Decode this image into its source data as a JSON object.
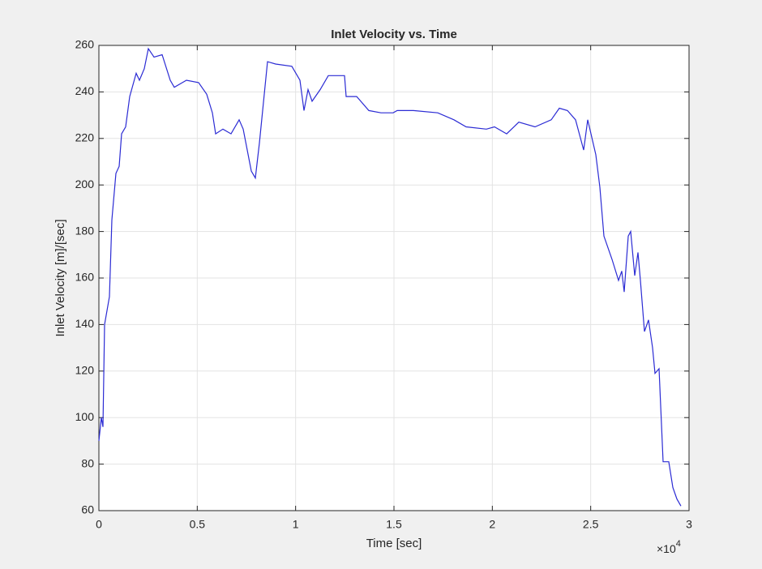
{
  "chart_data": {
    "type": "line",
    "title": "Inlet Velocity vs. Time",
    "x_label": "Time [sec]",
    "y_label": "Inlet Velocity [m]/[sec]",
    "x_exponent": {
      "base": "×10",
      "power": "4"
    },
    "color": "#2b2bd4",
    "grid": true,
    "xlim": [
      0,
      30000
    ],
    "ylim": [
      60,
      260
    ],
    "xticks": [
      0,
      {
        "value": 5000,
        "label": "0.5"
      },
      {
        "value": 10000,
        "label": "1"
      },
      {
        "value": 15000,
        "label": "1.5"
      },
      {
        "value": 20000,
        "label": "2"
      },
      {
        "value": 25000,
        "label": "2.5"
      },
      {
        "value": 30000,
        "label": "3"
      }
    ],
    "yticks": [
      60,
      80,
      100,
      120,
      140,
      160,
      180,
      200,
      220,
      240,
      260
    ],
    "x": [
      0,
      124,
      206,
      288,
      536,
      659,
      865,
      1030,
      1154,
      1360,
      1566,
      1896,
      2060,
      2308,
      2514,
      2802,
      3214,
      3626,
      3832,
      4244,
      4450,
      5069,
      5481,
      5769,
      5934,
      6305,
      6717,
      7129,
      7335,
      7747,
      7953,
      8159,
      8571,
      8984,
      9808,
      10220,
      10426,
      10632,
      10838,
      11250,
      11662,
      12486,
      12569,
      13104,
      13723,
      14341,
      14959,
      15165,
      15989,
      17225,
      18049,
      18668,
      19698,
      20110,
      20728,
      21346,
      22170,
      22995,
      23407,
      23819,
      24231,
      24644,
      24850,
      25262,
      25468,
      25674,
      26086,
      26416,
      26580,
      26704,
      26910,
      27034,
      27240,
      27405,
      27528,
      27734,
      27940,
      28146,
      28270,
      28476,
      28682,
      28971,
      29177,
      29383,
      29589
    ],
    "values": [
      90,
      100,
      96,
      140,
      152,
      185,
      205,
      208,
      222,
      225,
      238,
      248,
      245,
      250,
      258.6,
      255,
      256,
      245,
      242,
      244,
      245,
      244,
      239,
      231,
      222,
      224,
      222,
      228,
      224,
      206,
      203,
      218,
      253,
      252,
      251,
      245,
      232,
      241,
      236,
      241,
      247,
      247,
      238,
      238,
      232,
      231,
      231,
      232,
      232,
      231,
      228,
      225,
      224,
      225,
      222,
      227,
      225,
      228,
      233,
      232,
      228,
      215,
      228,
      213,
      199,
      178,
      168,
      159,
      163,
      154,
      178,
      180,
      161,
      171,
      159,
      137,
      142,
      130,
      119,
      121,
      81,
      81,
      70,
      65,
      62
    ]
  }
}
